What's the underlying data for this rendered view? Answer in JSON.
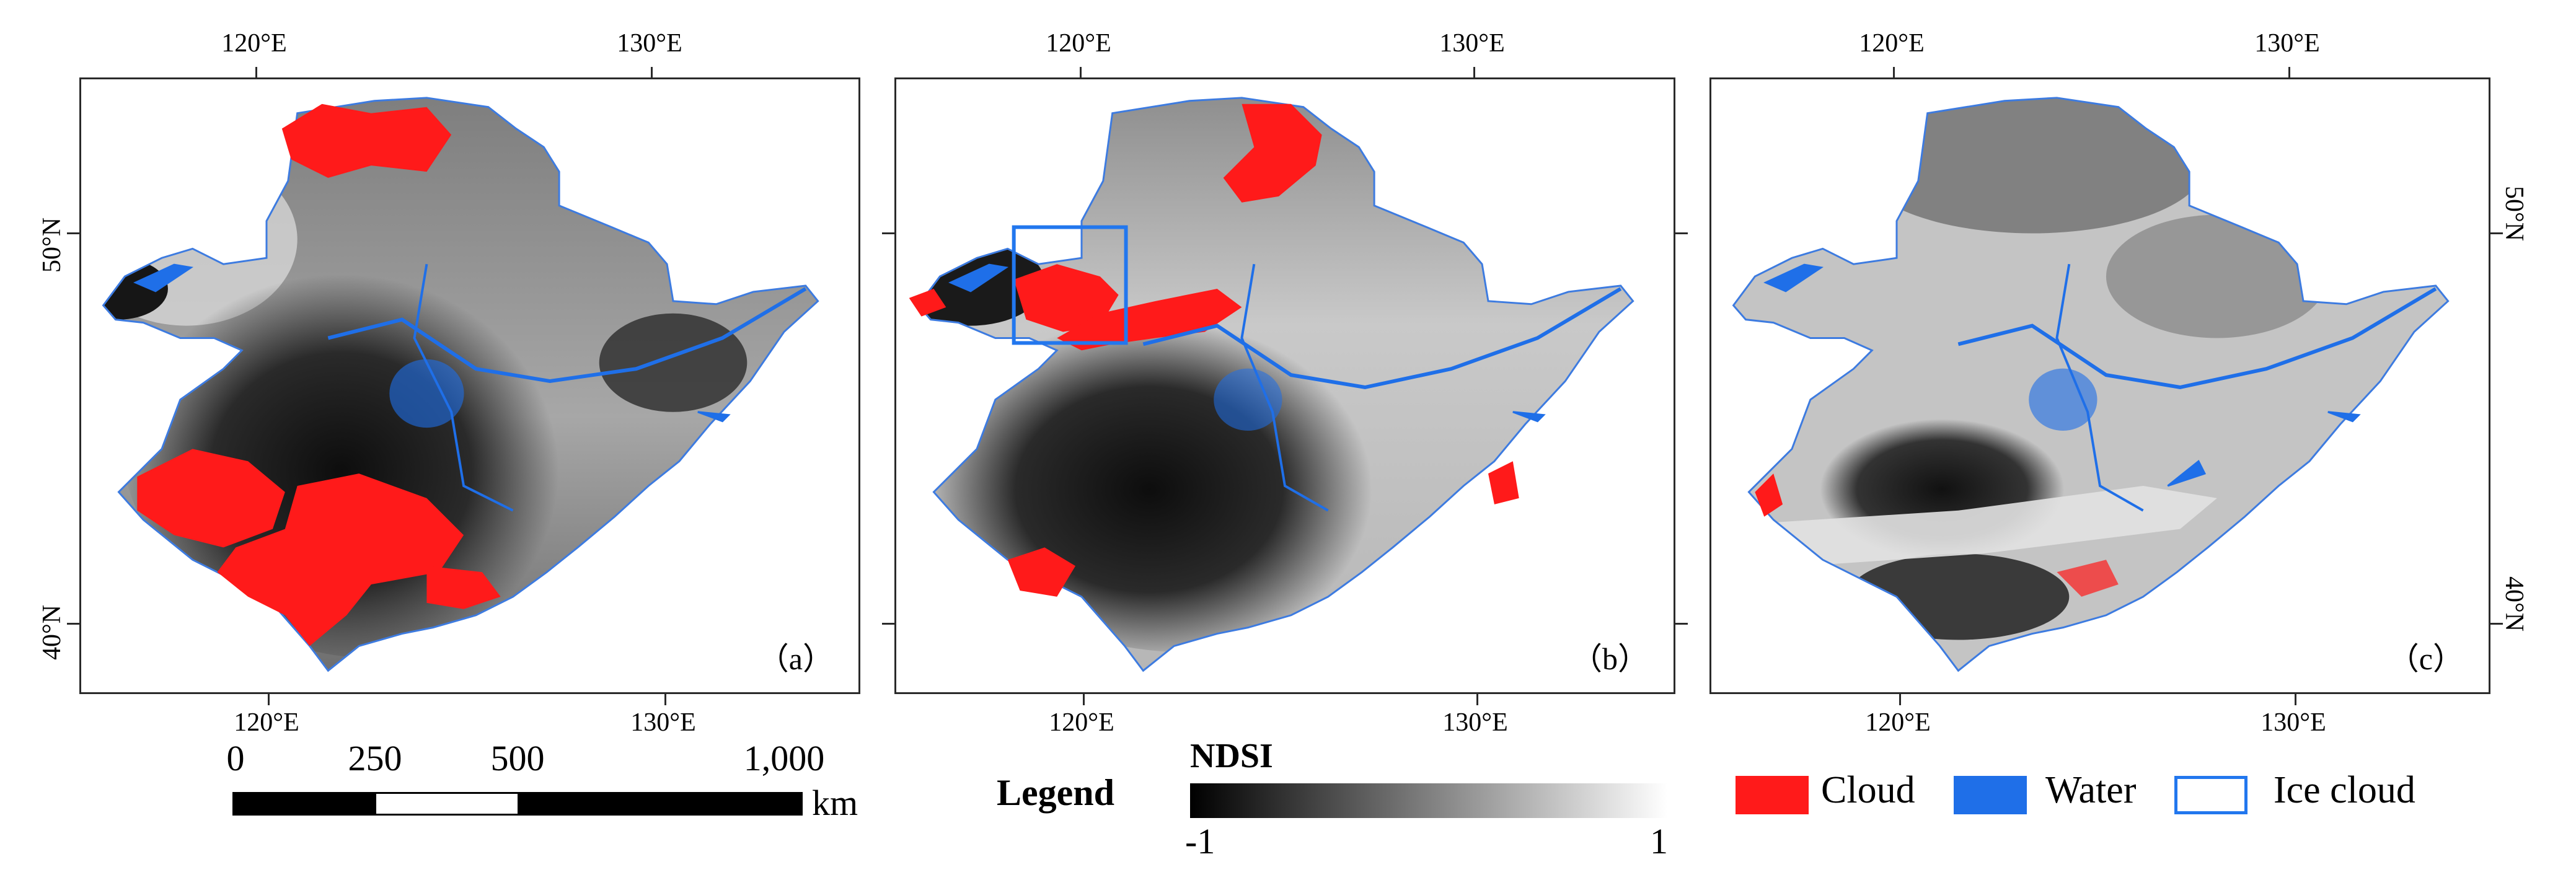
{
  "colors": {
    "cloud": "#ff1a1a",
    "water": "#1f6fe8",
    "ice_cloud_outline": "#2277ee",
    "ndsi_low": "#000000",
    "ndsi_high": "#ffffff"
  },
  "axes": {
    "lon_labels": [
      "120°E",
      "130°E"
    ],
    "lat_labels": [
      "50°N",
      "40°N"
    ]
  },
  "panels": [
    {
      "id": "a",
      "label": "（a）"
    },
    {
      "id": "b",
      "label": "（b）"
    },
    {
      "id": "c",
      "label": "（c）"
    }
  ],
  "scale_bar": {
    "ticks": [
      "0",
      "250",
      "500",
      "1,000"
    ],
    "unit": "km"
  },
  "legend": {
    "title": "Legend",
    "ndsi": {
      "title": "NDSI",
      "min": "-1",
      "max": "1"
    },
    "items": [
      {
        "label": "Cloud",
        "icon": "cloud-swatch"
      },
      {
        "label": "Water",
        "icon": "water-swatch"
      },
      {
        "label": "Ice cloud",
        "icon": "ice-cloud-outline-swatch"
      }
    ]
  }
}
